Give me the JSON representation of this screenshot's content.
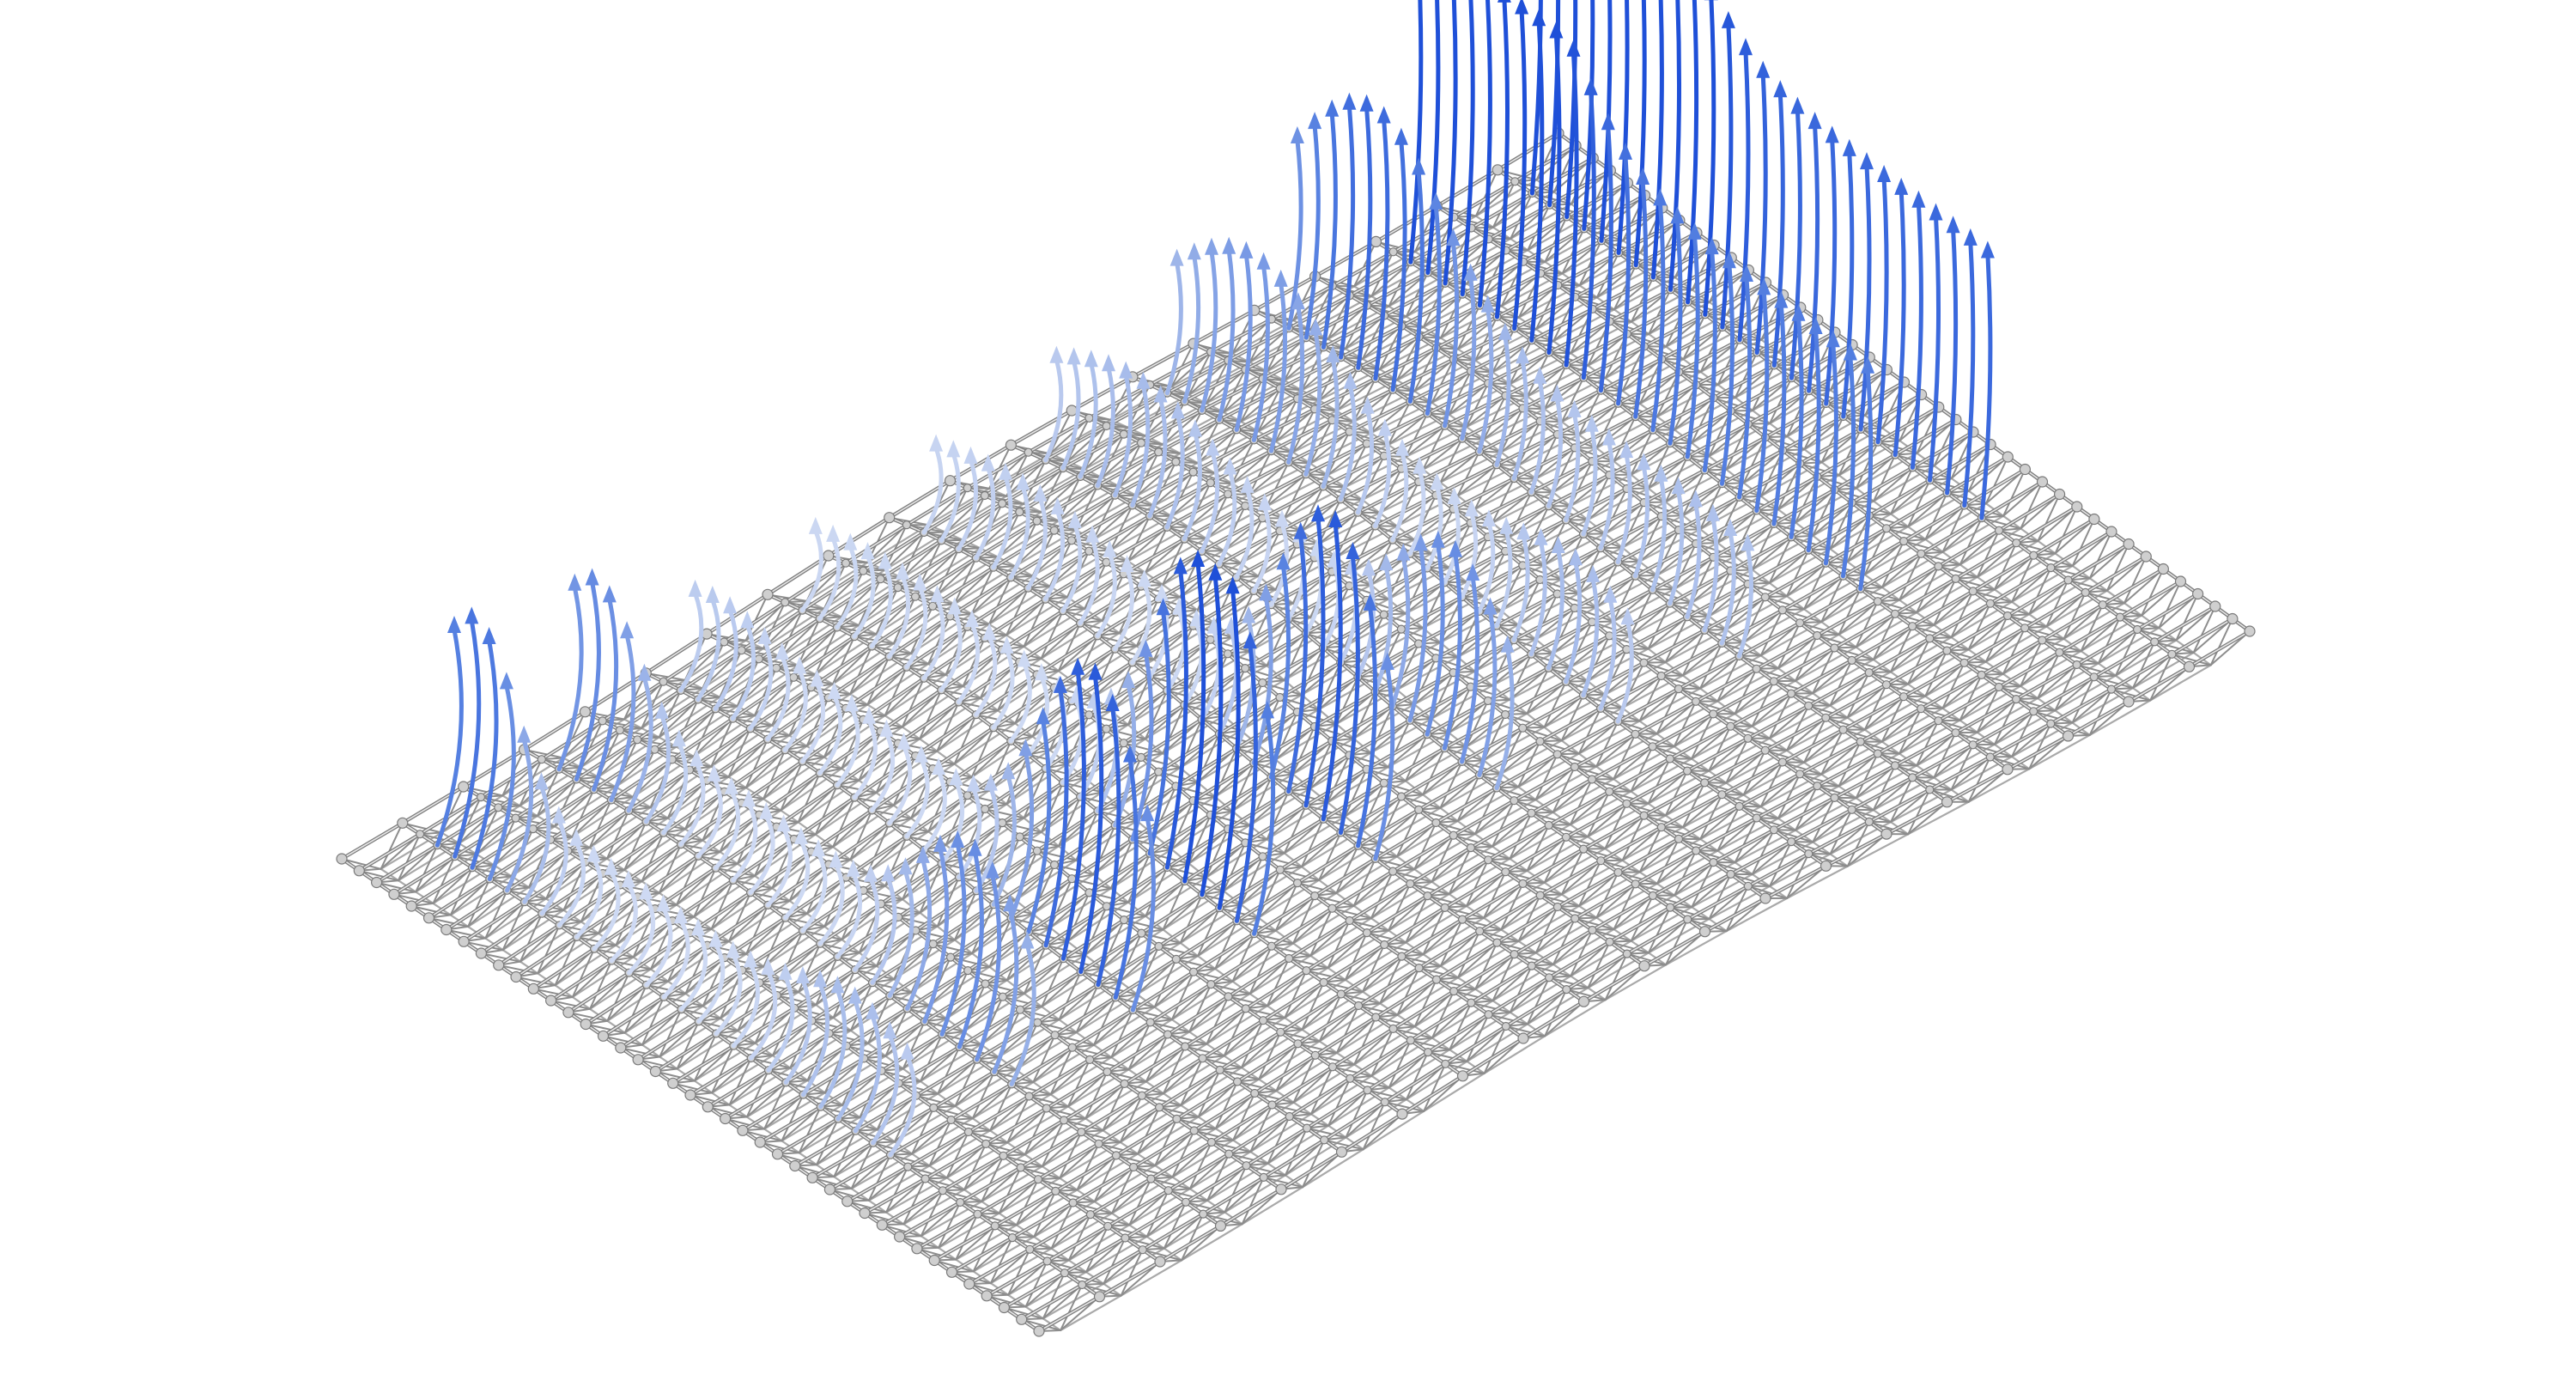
{
  "figure": {
    "subject": "space-frame-shell",
    "colors": {
      "background": "#ffffff",
      "member": "#8d8d8d",
      "member_highlight": "#e6e6e6",
      "node": "#cfcfcf",
      "node_outline": "#7a7a7a",
      "vector_high": "#1f50d8",
      "vector_low": "#f4f6fb"
    },
    "grid": {
      "columns": 40,
      "rows": 20,
      "layers": 2
    },
    "vector_field": {
      "description_icon": "force-arrow-icon",
      "color_scale": [
        "#f4f6fb",
        "#9fb6e9",
        "#4f7be0",
        "#1f50d8"
      ]
    }
  }
}
